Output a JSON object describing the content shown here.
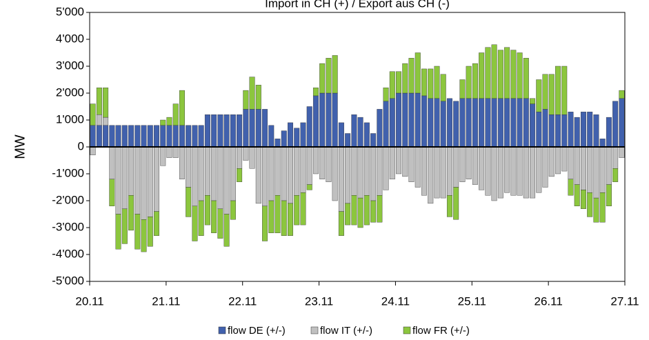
{
  "chart_data": {
    "type": "stacked_bar",
    "title": "Import in CH (+) / Export aus CH (-)",
    "y_label": "MW",
    "x": [
      0,
      2,
      4,
      6,
      8,
      10,
      12,
      14,
      16,
      18,
      20,
      22,
      24,
      26,
      28,
      30,
      32,
      34,
      36,
      38,
      40,
      42,
      44,
      46,
      48,
      50,
      52,
      54,
      56,
      58,
      60,
      62,
      64,
      66,
      68,
      70,
      72,
      74,
      76,
      78,
      80,
      82,
      84,
      86,
      88,
      90,
      92,
      94,
      96,
      98,
      100,
      102,
      104,
      106,
      108,
      110,
      112,
      114,
      116,
      118,
      120,
      122,
      124,
      126,
      128,
      130,
      132,
      134,
      136,
      138,
      140,
      142,
      144,
      146,
      148,
      150,
      152,
      154,
      156,
      158,
      160,
      162,
      164,
      166
    ],
    "xlim": [
      0,
      168
    ],
    "xticks": [
      {
        "value": 0,
        "label": "20.11"
      },
      {
        "value": 24,
        "label": "21.11"
      },
      {
        "value": 48,
        "label": "22.11"
      },
      {
        "value": 72,
        "label": "23.11"
      },
      {
        "value": 96,
        "label": "24.11"
      },
      {
        "value": 120,
        "label": "25.11"
      },
      {
        "value": 144,
        "label": "26.11"
      },
      {
        "value": 168,
        "label": "27.11"
      }
    ],
    "ylim": [
      -5000,
      5000
    ],
    "yticks": [
      {
        "value": -5000,
        "label": "-5'000"
      },
      {
        "value": -4000,
        "label": "-4'000"
      },
      {
        "value": -3000,
        "label": "-3'000"
      },
      {
        "value": -2000,
        "label": "-2'000"
      },
      {
        "value": -1000,
        "label": "-1'000"
      },
      0,
      {
        "value": 1000,
        "label": "1'000"
      },
      {
        "value": 2000,
        "label": "2'000"
      },
      {
        "value": 3000,
        "label": "3'000"
      },
      {
        "value": 4000,
        "label": "4'000"
      },
      {
        "value": 5000,
        "label": "5'000"
      }
    ],
    "legend": "bottom",
    "series": [
      {
        "name": "flow DE (+/-)",
        "color": "#4161ad",
        "values": [
          800,
          800,
          800,
          800,
          800,
          800,
          800,
          800,
          800,
          800,
          800,
          800,
          800,
          800,
          800,
          800,
          800,
          800,
          1200,
          1200,
          1200,
          1200,
          1200,
          1200,
          1400,
          1400,
          1400,
          1400,
          800,
          300,
          600,
          900,
          700,
          900,
          1500,
          1900,
          2000,
          2000,
          2000,
          900,
          500,
          1200,
          1100,
          900,
          500,
          1400,
          1700,
          1800,
          2000,
          2000,
          2000,
          2000,
          1900,
          1800,
          1800,
          1700,
          1800,
          1700,
          1800,
          1800,
          1800,
          1800,
          1800,
          1800,
          1800,
          1800,
          1800,
          1800,
          1800,
          1600,
          1300,
          1400,
          1200,
          1200,
          1200,
          1300,
          1100,
          1300,
          1300,
          1200,
          300,
          1100,
          1700,
          1800
        ]
      },
      {
        "name": "flow IT (+/-)",
        "color": "#c0c0c0",
        "values": [
          -300,
          400,
          300,
          -1200,
          -2500,
          -2300,
          -1800,
          -2500,
          -2700,
          -2600,
          -2400,
          -700,
          -400,
          -400,
          -1200,
          -1500,
          -2200,
          -2000,
          -1800,
          -2000,
          -2300,
          -2500,
          -2000,
          -800,
          -500,
          -800,
          -2100,
          -2200,
          -2000,
          -1800,
          -2000,
          -2100,
          -1800,
          -1700,
          -1400,
          -1000,
          -1200,
          -1300,
          -2000,
          -2400,
          -2100,
          -1800,
          -1900,
          -1800,
          -2000,
          -1800,
          -1600,
          -1200,
          -1000,
          -1100,
          -1300,
          -1500,
          -1800,
          -2100,
          -1900,
          -1900,
          -1800,
          -1500,
          -1300,
          -1200,
          -1400,
          -1600,
          -1800,
          -2000,
          -1900,
          -1700,
          -1800,
          -1800,
          -1900,
          -1900,
          -1700,
          -1500,
          -1100,
          -1000,
          -900,
          -1200,
          -1400,
          -1600,
          -1700,
          -1900,
          -1700,
          -1400,
          -800,
          -400
        ]
      },
      {
        "name": "flow FR (+/-)",
        "color": "#8cc63e",
        "values": [
          800,
          1000,
          1100,
          -1000,
          -1300,
          -1300,
          -1300,
          -1300,
          -1200,
          -1100,
          -900,
          200,
          300,
          800,
          1300,
          -1100,
          -1300,
          -1300,
          -1100,
          -1200,
          -1100,
          -1200,
          -700,
          -500,
          700,
          1200,
          900,
          -1300,
          -1200,
          -1400,
          -1300,
          -1200,
          -1100,
          -1200,
          -200,
          300,
          1100,
          1300,
          1400,
          -900,
          -800,
          -1100,
          -1100,
          -1100,
          -800,
          -1000,
          500,
          1000,
          800,
          1100,
          1300,
          1500,
          1000,
          1100,
          1200,
          1000,
          -800,
          -1200,
          700,
          1200,
          1300,
          1700,
          1900,
          2000,
          1800,
          1900,
          1800,
          1700,
          1500,
          200,
          1200,
          1300,
          1500,
          1800,
          1800,
          -600,
          -800,
          -700,
          -900,
          -900,
          -1100,
          -800,
          -500,
          300
        ]
      }
    ]
  }
}
